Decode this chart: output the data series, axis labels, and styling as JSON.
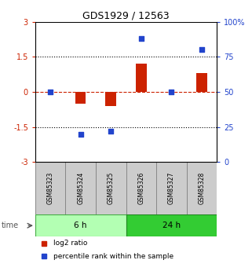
{
  "title": "GDS1929 / 12563",
  "samples": [
    "GSM85323",
    "GSM85324",
    "GSM85325",
    "GSM85326",
    "GSM85327",
    "GSM85328"
  ],
  "log2_ratio": [
    0.0,
    -0.52,
    -0.62,
    1.22,
    0.0,
    0.82
  ],
  "percentile_rank": [
    50.0,
    20.0,
    22.0,
    88.0,
    50.0,
    80.0
  ],
  "groups": [
    {
      "label": "6 h",
      "indices": [
        0,
        1,
        2
      ],
      "color": "#b3ffb3",
      "edge": "#44aa44"
    },
    {
      "label": "24 h",
      "indices": [
        3,
        4,
        5
      ],
      "color": "#33cc33",
      "edge": "#228822"
    }
  ],
  "ylim_left": [
    -3,
    3
  ],
  "ylim_right": [
    0,
    100
  ],
  "yticks_left": [
    -3,
    -1.5,
    0,
    1.5,
    3
  ],
  "ytick_labels_left": [
    "-3",
    "-1.5",
    "0",
    "1.5",
    "3"
  ],
  "yticks_right": [
    0,
    25,
    50,
    75,
    100
  ],
  "ytick_labels_right": [
    "0",
    "25",
    "50",
    "75",
    "100%"
  ],
  "hlines_dotted": [
    1.5,
    -1.5
  ],
  "hline_zero": 0,
  "red_color": "#cc2200",
  "blue_color": "#2244cc",
  "bar_width": 0.35,
  "square_size": 25,
  "legend_red": "log2 ratio",
  "legend_blue": "percentile rank within the sample",
  "sample_box_color": "#cccccc",
  "time_label": "time"
}
